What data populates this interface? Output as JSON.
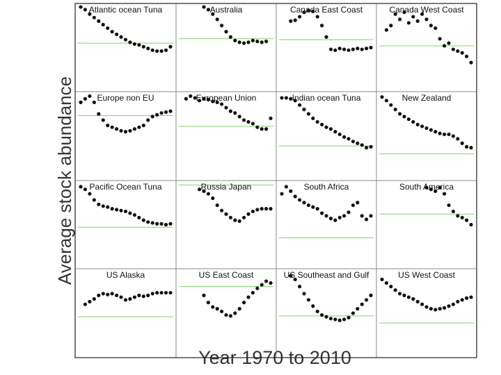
{
  "y_label": "Average stock abundance",
  "x_label": "Year 1970 to 2010",
  "x": [
    1970,
    1972,
    1974,
    1976,
    1978,
    1980,
    1982,
    1984,
    1986,
    1988,
    1990,
    1992,
    1994,
    1996,
    1998,
    2000,
    2002,
    2004,
    2006,
    2008,
    2010
  ],
  "xlim": [
    1970,
    2010
  ],
  "ylim": [
    0,
    1
  ],
  "dot_color": "#111111",
  "reference_color": "#7fd46a",
  "chart_data": [
    {
      "type": "scatter",
      "title": "Atlantic ocean Tuna",
      "reference": 0.55,
      "values": [
        0.96,
        0.93,
        0.88,
        0.84,
        0.8,
        0.76,
        0.72,
        0.68,
        0.65,
        0.62,
        0.59,
        0.56,
        0.54,
        0.53,
        0.51,
        0.49,
        0.47,
        0.46,
        0.46,
        0.47,
        0.51
      ]
    },
    {
      "type": "scatter",
      "title": "Australia",
      "reference": 0.6,
      "values": [
        null,
        null,
        null,
        null,
        null,
        0.96,
        0.93,
        0.88,
        0.82,
        0.75,
        0.68,
        0.62,
        0.58,
        0.56,
        0.55,
        0.56,
        0.58,
        0.57,
        0.56,
        0.57,
        null
      ]
    },
    {
      "type": "scatter",
      "title": "Canada East Coast",
      "reference": 0.59,
      "values": [
        null,
        null,
        0.8,
        0.81,
        0.85,
        0.9,
        0.92,
        0.91,
        0.85,
        0.75,
        0.62,
        0.48,
        0.47,
        0.49,
        0.48,
        0.47,
        0.48,
        0.49,
        0.48,
        0.49,
        0.5
      ]
    },
    {
      "type": "scatter",
      "title": "Canada West Coast",
      "reference": 0.52,
      "values": [
        null,
        0.7,
        0.75,
        0.88,
        0.82,
        0.9,
        0.78,
        0.85,
        0.8,
        0.88,
        0.82,
        0.75,
        0.72,
        0.6,
        0.52,
        0.55,
        0.48,
        0.46,
        0.44,
        0.4,
        0.33
      ]
    },
    {
      "type": "scatter",
      "title": "Europe non EU",
      "reference": 0.73,
      "values": [
        0.88,
        0.92,
        0.95,
        0.88,
        0.75,
        0.68,
        0.62,
        0.6,
        0.58,
        0.56,
        0.55,
        0.56,
        0.58,
        0.6,
        0.62,
        0.68,
        0.72,
        0.74,
        0.76,
        0.77,
        0.78
      ]
    },
    {
      "type": "scatter",
      "title": "European Union",
      "reference": 0.61,
      "values": [
        null,
        0.92,
        0.95,
        0.93,
        0.9,
        0.92,
        0.91,
        0.89,
        0.88,
        0.86,
        0.82,
        0.78,
        0.76,
        0.72,
        0.68,
        0.66,
        0.64,
        0.6,
        0.58,
        0.58,
        0.7
      ]
    },
    {
      "type": "scatter",
      "title": "Indian ocean Tuna",
      "reference": 0.39,
      "values": [
        0.93,
        0.93,
        0.92,
        0.9,
        0.85,
        0.8,
        0.75,
        0.7,
        0.66,
        0.63,
        0.6,
        0.58,
        0.55,
        0.52,
        0.49,
        0.47,
        0.44,
        0.42,
        0.4,
        0.37,
        0.38
      ]
    },
    {
      "type": "scatter",
      "title": "New Zealand",
      "reference": 0.3,
      "values": [
        0.94,
        0.9,
        0.85,
        0.8,
        0.75,
        0.72,
        0.69,
        0.66,
        0.63,
        0.61,
        0.59,
        0.57,
        0.55,
        0.53,
        0.52,
        0.52,
        0.5,
        0.47,
        0.42,
        0.38,
        0.37
      ]
    },
    {
      "type": "scatter",
      "title": "Pacific Ocean Tuna",
      "reference": 0.47,
      "values": [
        0.93,
        0.9,
        0.85,
        0.78,
        0.73,
        0.71,
        0.7,
        0.68,
        0.67,
        0.66,
        0.65,
        0.63,
        0.61,
        0.58,
        0.55,
        0.53,
        0.52,
        0.51,
        0.51,
        0.5,
        0.51
      ]
    },
    {
      "type": "scatter",
      "title": "Russia Japan",
      "reference": 0.95,
      "values": [
        null,
        null,
        null,
        null,
        0.9,
        0.88,
        0.85,
        0.8,
        0.72,
        0.66,
        0.62,
        0.58,
        0.55,
        0.54,
        0.58,
        0.62,
        0.65,
        0.67,
        0.68,
        0.68,
        0.68
      ]
    },
    {
      "type": "scatter",
      "title": "South Africa",
      "reference": 0.35,
      "values": [
        0.85,
        0.93,
        0.88,
        0.82,
        0.78,
        0.75,
        0.72,
        0.7,
        0.68,
        0.63,
        0.6,
        0.57,
        0.55,
        0.58,
        0.6,
        0.64,
        0.72,
        0.75,
        0.6,
        0.56,
        0.6
      ]
    },
    {
      "type": "scatter",
      "title": "South America",
      "reference": 0.62,
      "values": [
        null,
        null,
        null,
        null,
        null,
        null,
        null,
        null,
        null,
        null,
        0.92,
        0.9,
        0.88,
        0.92,
        0.85,
        0.72,
        0.65,
        0.6,
        0.58,
        0.55,
        0.5
      ]
    },
    {
      "type": "scatter",
      "title": "US Alaska",
      "reference": 0.46,
      "values": [
        null,
        0.6,
        0.63,
        0.66,
        0.7,
        0.72,
        0.71,
        0.72,
        0.7,
        0.68,
        0.65,
        0.66,
        0.68,
        0.7,
        0.69,
        0.7,
        0.72,
        0.73,
        0.73,
        0.73,
        0.73
      ]
    },
    {
      "type": "scatter",
      "title": "US East Coast",
      "reference": 0.8,
      "values": [
        null,
        null,
        null,
        null,
        null,
        0.7,
        0.62,
        0.57,
        0.55,
        0.52,
        0.48,
        0.47,
        0.5,
        0.55,
        0.62,
        0.68,
        0.73,
        0.78,
        0.82,
        0.86,
        0.84
      ]
    },
    {
      "type": "scatter",
      "title": "US Southeast and Gulf",
      "reference": 0.47,
      "values": [
        null,
        null,
        0.92,
        0.88,
        0.8,
        0.72,
        0.65,
        0.58,
        0.52,
        0.48,
        0.46,
        0.44,
        0.43,
        0.42,
        0.43,
        0.45,
        0.5,
        0.55,
        0.6,
        0.65,
        0.7
      ]
    },
    {
      "type": "scatter",
      "title": "US West Coast",
      "reference": 0.39,
      "values": [
        0.88,
        0.84,
        0.8,
        0.76,
        0.72,
        0.7,
        0.68,
        0.66,
        0.63,
        0.6,
        0.57,
        0.55,
        0.54,
        0.55,
        0.56,
        0.58,
        0.6,
        0.63,
        0.65,
        0.67,
        0.68
      ]
    }
  ]
}
